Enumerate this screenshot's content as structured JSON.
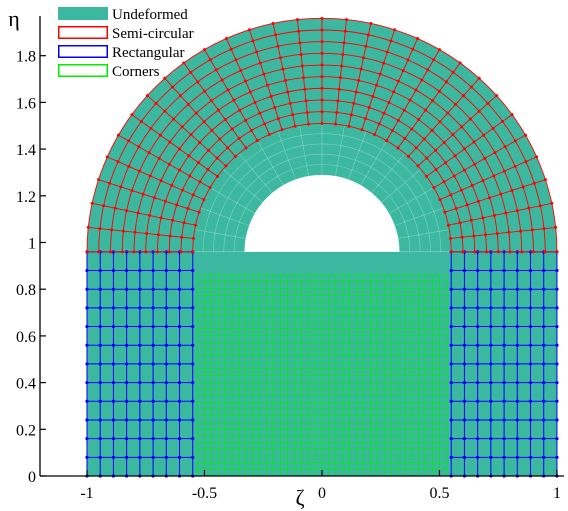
{
  "chart_data": {
    "type": "mesh",
    "xlabel": "ζ",
    "ylabel": "η",
    "xlim": [
      -1.2,
      1.03
    ],
    "ylim": [
      0,
      1.97
    ],
    "xticks": [
      -1,
      -0.5,
      0,
      0.5,
      1
    ],
    "xtick_labels": [
      "-1",
      "-0.5",
      "0",
      "0.5",
      "1"
    ],
    "yticks": [
      0,
      0.2,
      0.4,
      0.6,
      0.8,
      1,
      1.2,
      1.4,
      1.6,
      1.8
    ],
    "ytick_labels": [
      "0",
      "0.2",
      "0.4",
      "0.6",
      "0.8",
      "1",
      "1.2",
      "1.4",
      "1.6",
      "1.8"
    ],
    "legend_position": "top-left",
    "series": [
      {
        "name": "Undeformed",
        "kind": "filled-region",
        "color": "#3cb8a0",
        "region": {
          "annulus_center": [
            0,
            0.96
          ],
          "annulus_radii": [
            0.55,
            1.0
          ],
          "inner_block": {
            "x": [
              -0.55,
              0.55
            ],
            "y": [
              0,
              0.96
            ]
          },
          "hole_center": [
            0,
            0.96
          ],
          "hole_radius": 0.33
        }
      },
      {
        "name": "Semi-circular",
        "kind": "mesh",
        "color": "#ff0000",
        "center": [
          0,
          0.96
        ],
        "r_range": [
          0.55,
          1.0
        ],
        "radial_lines": 31,
        "ring_lines": 10
      },
      {
        "name": "Rectangular",
        "kind": "mesh",
        "color": "#0000ff",
        "blocks": [
          {
            "x": [
              -1.0,
              -0.55
            ],
            "y": [
              0,
              0.96
            ]
          },
          {
            "x": [
              0.55,
              1.0
            ],
            "y": [
              0,
              0.96
            ]
          }
        ],
        "x_lines": 9,
        "y_lines": 13
      },
      {
        "name": "Corners",
        "kind": "mesh",
        "color": "#00ee00",
        "blocks": [
          {
            "x": [
              -0.53,
              0.53
            ],
            "y": [
              0,
              0.86
            ]
          }
        ],
        "x_lines": 37,
        "y_lines": 31
      }
    ]
  }
}
